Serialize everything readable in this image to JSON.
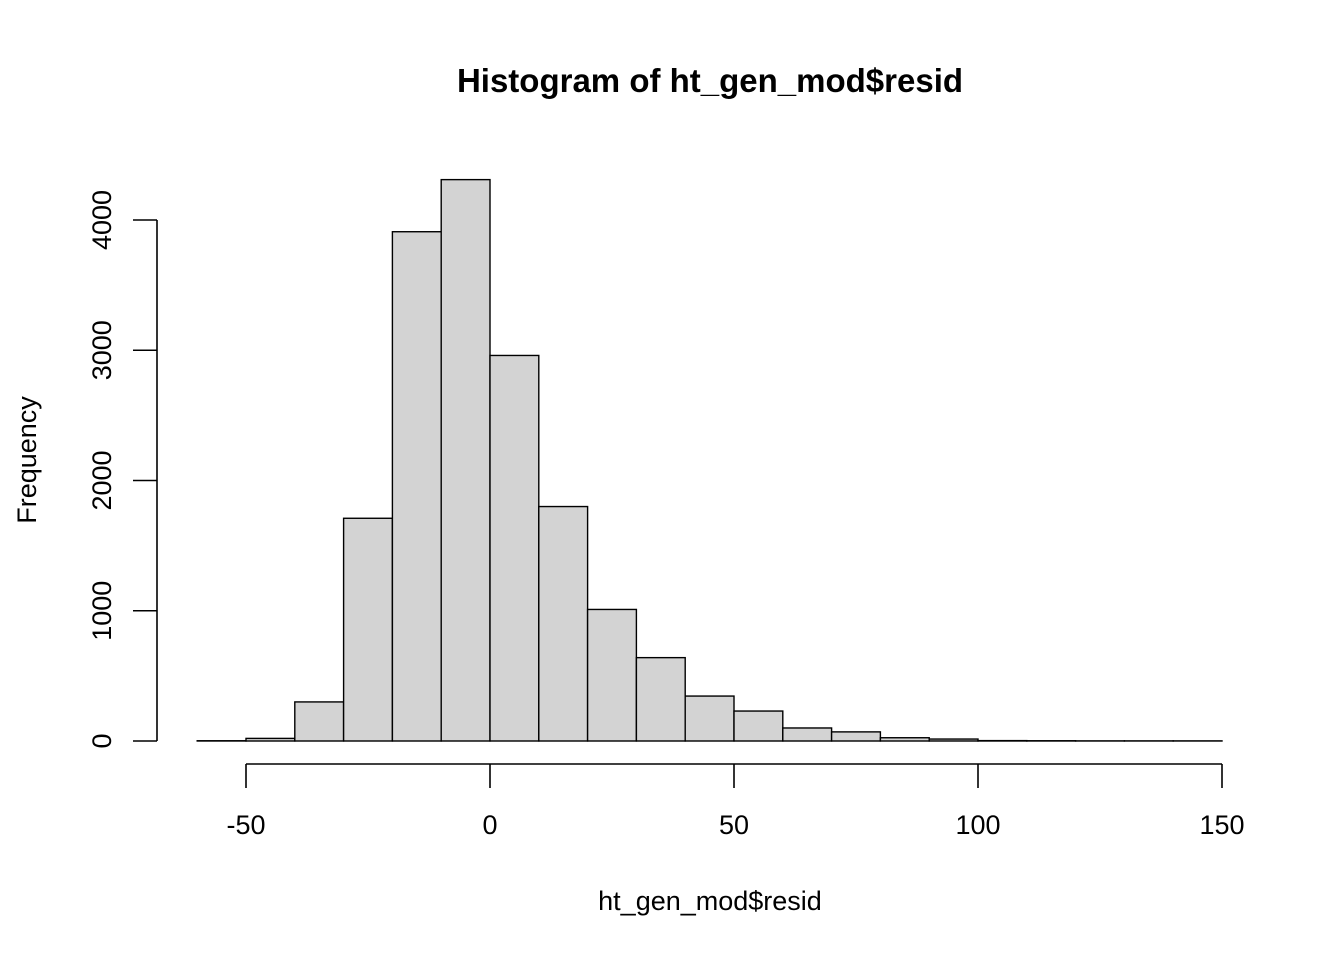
{
  "chart_data": {
    "type": "bar",
    "title": "Histogram of ht_gen_mod$resid",
    "xlabel": "ht_gen_mod$resid",
    "ylabel": "Frequency",
    "xlim": [
      -60,
      150
    ],
    "ylim": [
      0,
      4300
    ],
    "x_ticks": [
      -50,
      0,
      50,
      100,
      150
    ],
    "y_ticks": [
      0,
      1000,
      2000,
      3000,
      4000
    ],
    "bin_edges": [
      -60,
      -50,
      -40,
      -30,
      -20,
      -10,
      0,
      10,
      20,
      30,
      40,
      50,
      60,
      70,
      80,
      90,
      100,
      110,
      120,
      130,
      140,
      150
    ],
    "values": [
      2,
      20,
      300,
      1710,
      3910,
      4310,
      2960,
      1800,
      1010,
      640,
      345,
      230,
      100,
      70,
      25,
      15,
      3,
      2,
      1,
      1,
      1
    ],
    "bar_color": "#d3d3d3",
    "grid": false
  }
}
